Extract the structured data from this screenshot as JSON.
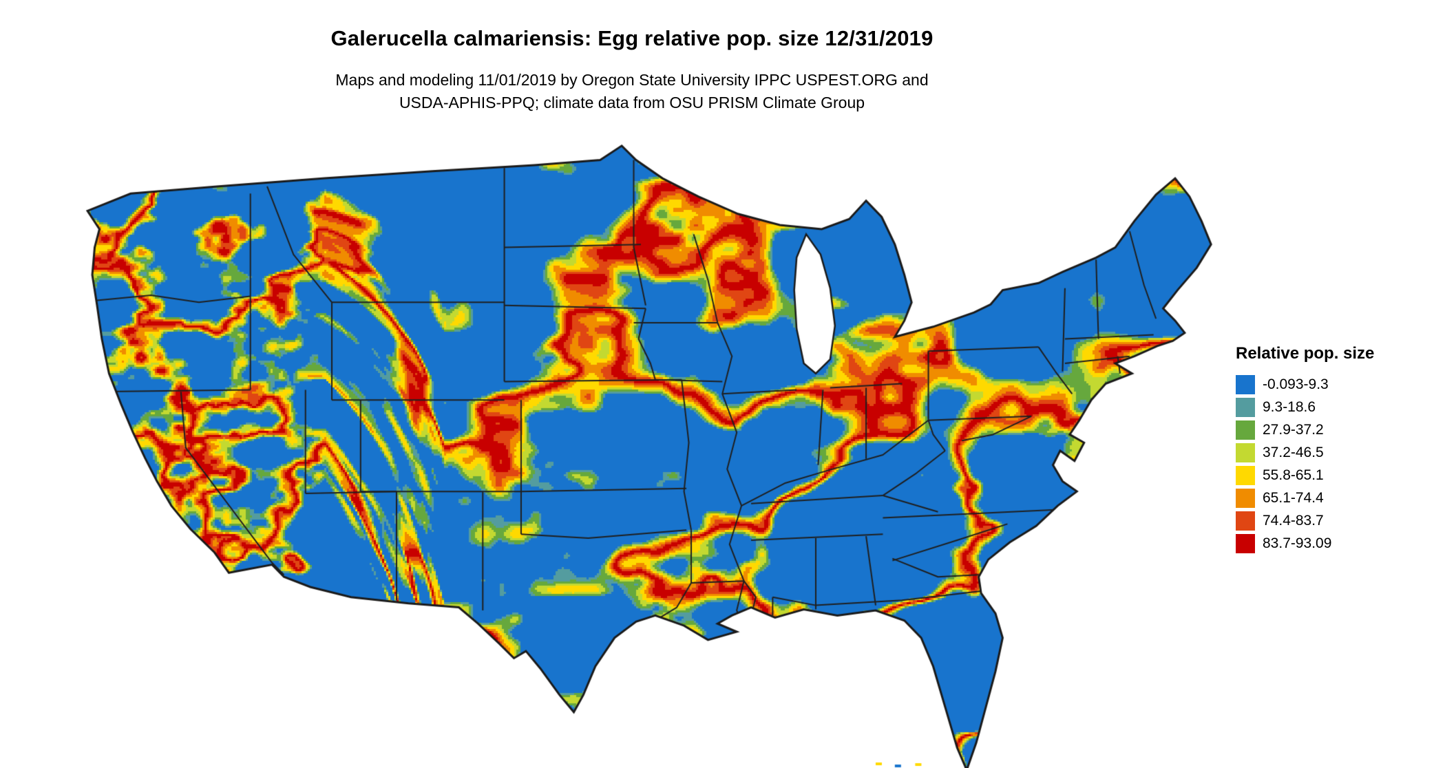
{
  "header": {
    "title": "Galerucella calmariensis: Egg relative pop. size 12/31/2019",
    "subtitle_line1": "Maps and modeling 11/01/2019 by Oregon State University IPPC USPEST.ORG and",
    "subtitle_line2": "USDA-APHIS-PPQ; climate data from OSU PRISM Climate Group"
  },
  "legend": {
    "title": "Relative pop. size",
    "items": [
      {
        "label": "-0.093-9.3",
        "color": "#1874CD"
      },
      {
        "label": "9.3-18.6",
        "color": "#549C9F"
      },
      {
        "label": "27.9-37.2",
        "color": "#66A83D"
      },
      {
        "label": "37.2-46.5",
        "color": "#C3D931"
      },
      {
        "label": "55.8-65.1",
        "color": "#FFD900"
      },
      {
        "label": "65.1-74.4",
        "color": "#F08C00"
      },
      {
        "label": "74.4-83.7",
        "color": "#E04613"
      },
      {
        "label": "83.7-93.09",
        "color": "#C80000"
      }
    ]
  },
  "map": {
    "base_color": "#1874CD",
    "border_color": "#1a1a1a",
    "background": "#FFFFFF"
  }
}
